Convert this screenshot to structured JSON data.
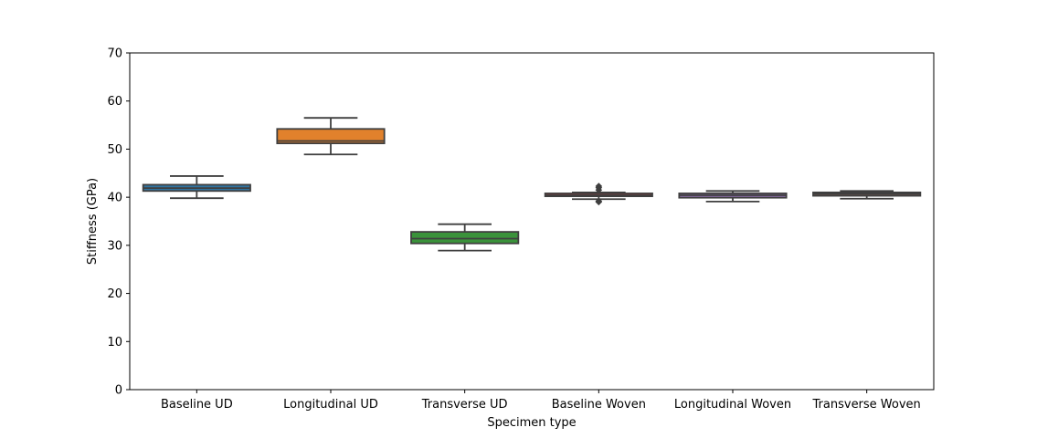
{
  "chart_data": {
    "type": "box",
    "title": "",
    "xlabel": "Specimen type",
    "ylabel": "Stiffness (GPa)",
    "ylim": [
      0,
      70
    ],
    "yticks": [
      0,
      10,
      20,
      30,
      40,
      50,
      60,
      70
    ],
    "grid": false,
    "legend": "none",
    "categories": [
      "Baseline UD",
      "Longitudinal UD",
      "Transverse UD",
      "Baseline Woven",
      "Longitudinal Woven",
      "Transverse Woven"
    ],
    "boxes": [
      {
        "category": "Baseline UD",
        "whisker_low": 39.8,
        "q1": 41.3,
        "median": 41.9,
        "q3": 42.6,
        "whisker_high": 44.4,
        "outliers": [],
        "color": "#3274a1"
      },
      {
        "category": "Longitudinal UD",
        "whisker_low": 48.9,
        "q1": 51.2,
        "median": 51.7,
        "q3": 54.2,
        "whisker_high": 56.5,
        "outliers": [],
        "color": "#e1812c"
      },
      {
        "category": "Transverse UD",
        "whisker_low": 28.9,
        "q1": 30.4,
        "median": 31.4,
        "q3": 32.8,
        "whisker_high": 34.4,
        "outliers": [],
        "color": "#3a923a"
      },
      {
        "category": "Baseline Woven",
        "whisker_low": 39.6,
        "q1": 40.2,
        "median": 40.4,
        "q3": 40.8,
        "whisker_high": 41.0,
        "outliers": [
          39.0,
          39.2,
          41.5,
          42.0,
          42.3
        ],
        "color": "#c03d3e"
      },
      {
        "category": "Longitudinal Woven",
        "whisker_low": 39.1,
        "q1": 39.9,
        "median": 40.4,
        "q3": 40.8,
        "whisker_high": 41.3,
        "outliers": [],
        "color": "#9372b2"
      },
      {
        "category": "Transverse Woven",
        "whisker_low": 39.7,
        "q1": 40.3,
        "median": 40.7,
        "q3": 41.0,
        "whisker_high": 41.3,
        "outliers": [],
        "color": "#845b53"
      }
    ]
  }
}
